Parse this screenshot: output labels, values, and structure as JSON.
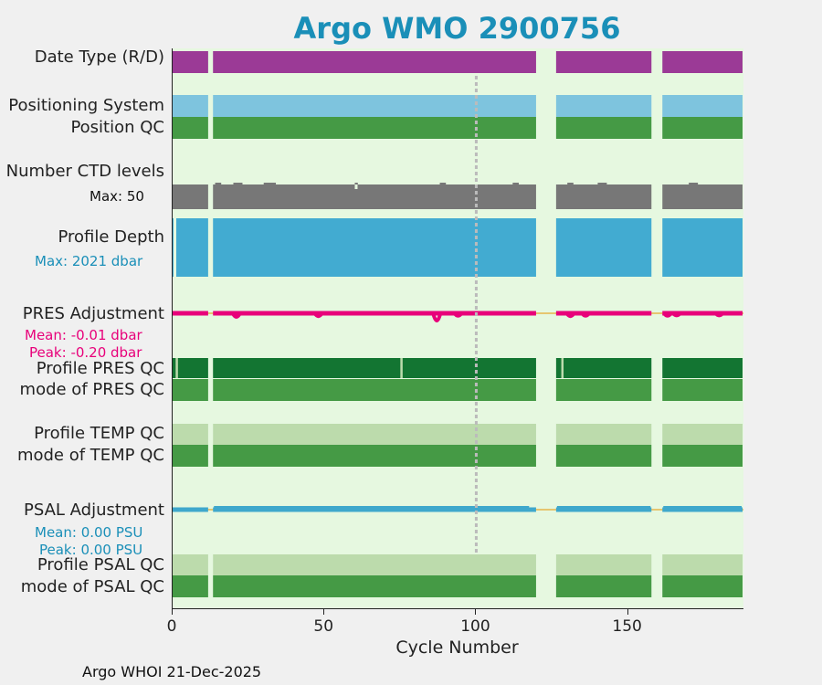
{
  "title": "Argo WMO 2900756",
  "footer": "Argo WHOI 21-Dec-2025",
  "labels": {
    "date_type": "Date Type (R/D)",
    "positioning_system": "Positioning System",
    "position_qc": "Position QC",
    "ctd_levels": "Number CTD levels",
    "ctd_max": "Max: 50",
    "profile_depth": "Profile Depth",
    "depth_max": "Max: 2021 dbar",
    "pres_adj": "PRES Adjustment",
    "pres_mean": "Mean: -0.01 dbar",
    "pres_peak": "Peak: -0.20 dbar",
    "profile_pres_qc": "Profile PRES QC",
    "mode_pres_qc": "mode of PRES QC",
    "profile_temp_qc": "Profile TEMP QC",
    "mode_temp_qc": "mode of TEMP QC",
    "psal_adj": "PSAL Adjustment",
    "psal_mean": "Mean: 0.00 PSU",
    "psal_peak": "Peak: 0.00 PSU",
    "profile_psal_qc": "Profile PSAL QC",
    "mode_psal_qc": "mode of PSAL QC"
  },
  "colors": {
    "title": "#1a8fb8",
    "plot_bg": "#e6f8e0",
    "date_type": "#9b3a96",
    "positioning": "#7ec4de",
    "qc_green": "#459a45",
    "pres_profile_qc": "#137532",
    "light_green": "#bcdbac",
    "ctd_gray": "#777777",
    "depth_blue": "#42abd1",
    "pres_adj": "#e8007a",
    "psal_adj": "#3fa8cc",
    "gap_line": "#e6b64a",
    "marker_line": "#bbbbbb",
    "pres_label": "#e8007a",
    "psal_label": "#1a8fb8"
  },
  "chart_data": {
    "type": "timeline",
    "xlabel": "Cycle Number",
    "xlim": [
      0,
      188
    ],
    "xticks": [
      0,
      50,
      100,
      150
    ],
    "marker_cycle": 100,
    "data_segments": [
      [
        0,
        12
      ],
      [
        13,
        120
      ],
      [
        126,
        158
      ],
      [
        161,
        188
      ]
    ],
    "ctd_levels_max": 50,
    "profile_depth_max_dbar": 2021,
    "pres_adjustment": {
      "mean_dbar": -0.01,
      "peak_dbar": -0.2,
      "dips": [
        {
          "cycle": 21,
          "depth": 0.1
        },
        {
          "cycle": 48,
          "depth": 0.08
        },
        {
          "cycle": 87,
          "depth": 0.2
        },
        {
          "cycle": 94,
          "depth": 0.07
        },
        {
          "cycle": 131,
          "depth": 0.08
        },
        {
          "cycle": 136,
          "depth": 0.07
        },
        {
          "cycle": 163,
          "depth": 0.07
        },
        {
          "cycle": 166,
          "depth": 0.06
        },
        {
          "cycle": 180,
          "depth": 0.06
        }
      ]
    },
    "psal_adjustment": {
      "mean_psu": 0.0,
      "peak_psu": 0.0
    },
    "pres_qc_light_cycles": [
      1,
      75,
      128
    ],
    "rows": [
      {
        "name": "Date Type (R/D)",
        "color_key": "date_type"
      },
      {
        "name": "Positioning System",
        "color_key": "positioning"
      },
      {
        "name": "Position QC",
        "color_key": "qc_green"
      },
      {
        "name": "Number CTD levels",
        "color_key": "ctd_gray"
      },
      {
        "name": "Profile Depth",
        "color_key": "depth_blue"
      },
      {
        "name": "PRES Adjustment",
        "color_key": "pres_adj"
      },
      {
        "name": "Profile PRES QC",
        "color_key": "pres_profile_qc"
      },
      {
        "name": "mode of PRES QC",
        "color_key": "qc_green"
      },
      {
        "name": "Profile TEMP QC",
        "color_key": "light_green"
      },
      {
        "name": "mode of TEMP QC",
        "color_key": "qc_green"
      },
      {
        "name": "PSAL Adjustment",
        "color_key": "psal_adj"
      },
      {
        "name": "Profile PSAL QC",
        "color_key": "light_green"
      },
      {
        "name": "mode of PSAL QC",
        "color_key": "qc_green"
      }
    ]
  }
}
